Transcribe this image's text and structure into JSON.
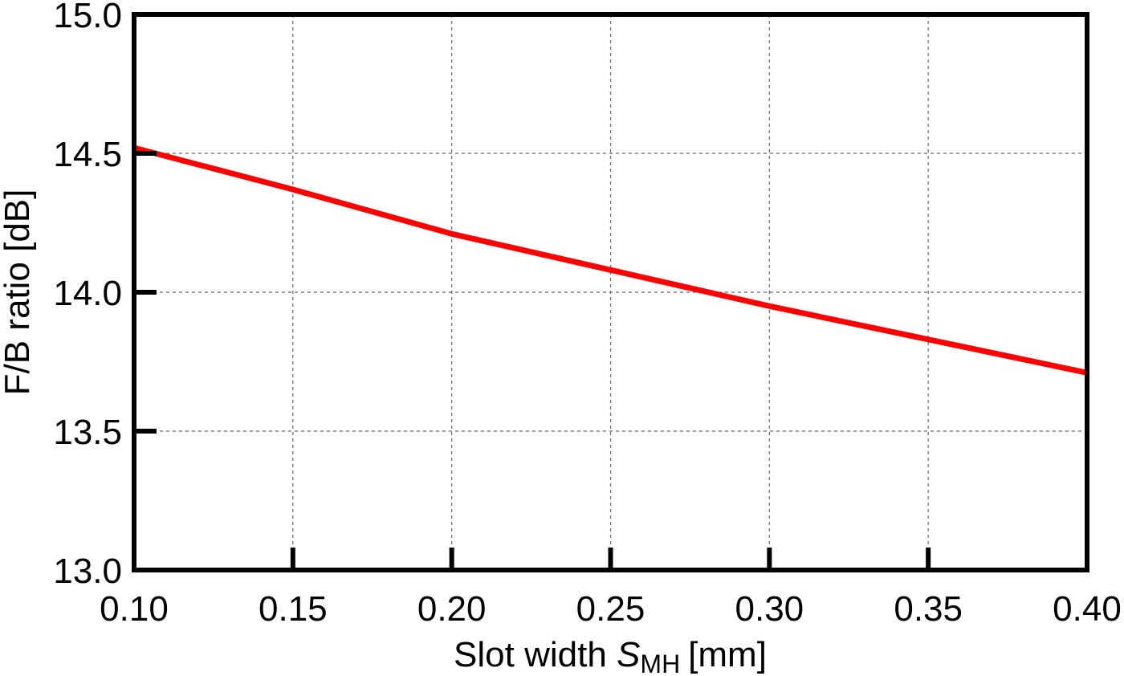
{
  "chart_data": {
    "type": "line",
    "title": "",
    "xlabel": "Slot width",
    "xlabel_var": "S",
    "xlabel_var_sub": "MH",
    "xlabel_unit": "[mm]",
    "ylabel": "F/B ratio [dB]",
    "xlim": [
      0.1,
      0.4
    ],
    "ylim": [
      13.0,
      15.0
    ],
    "xticks": [
      "0.10",
      "0.15",
      "0.20",
      "0.25",
      "0.30",
      "0.35",
      "0.40"
    ],
    "yticks": [
      "13.0",
      "13.5",
      "14.0",
      "14.5",
      "15.0"
    ],
    "grid": true,
    "series": [
      {
        "color": "#ff0000",
        "x": [
          0.1,
          0.15,
          0.2,
          0.25,
          0.3,
          0.35,
          0.4
        ],
        "y": [
          14.52,
          14.37,
          14.21,
          14.08,
          13.95,
          13.83,
          13.71
        ]
      }
    ]
  }
}
